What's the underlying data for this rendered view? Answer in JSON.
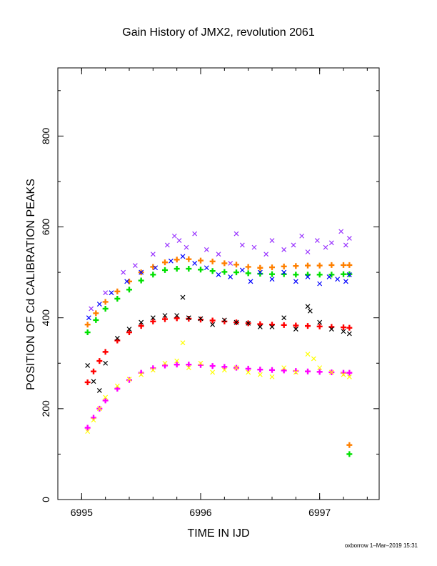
{
  "chart_data": {
    "type": "scatter",
    "title": "Gain History of JMX2, revolution 2061",
    "xlabel": "TIME IN IJD",
    "ylabel": "POSITION OF Cd CALIBRATION PEAKS",
    "footer": "oxborrow  1–Mar–2019 15:31",
    "xlim": [
      6994.8,
      6997.5
    ],
    "ylim": [
      0,
      950
    ],
    "xticks": [
      6995,
      6996,
      6997
    ],
    "yticks": [
      0,
      200,
      400,
      600,
      800
    ],
    "grid": false,
    "legend": "none",
    "series": [
      {
        "color": "#ff8000",
        "marker": "+",
        "x": [
          6995.05,
          6995.12,
          6995.2,
          6995.3,
          6995.4,
          6995.5,
          6995.6,
          6995.7,
          6995.8,
          6995.9,
          6996.0,
          6996.1,
          6996.2,
          6996.3,
          6996.4,
          6996.5,
          6996.6,
          6996.7,
          6996.8,
          6996.9,
          6997.0,
          6997.1,
          6997.2,
          6997.25
        ],
        "y": [
          385,
          410,
          435,
          458,
          480,
          500,
          512,
          522,
          528,
          529,
          526,
          524,
          520,
          517,
          512,
          510,
          511,
          513,
          514,
          515,
          515,
          516,
          516,
          516
        ]
      },
      {
        "color": "#00e000",
        "marker": "+",
        "x": [
          6995.05,
          6995.12,
          6995.2,
          6995.3,
          6995.4,
          6995.5,
          6995.6,
          6995.7,
          6995.8,
          6995.9,
          6996.0,
          6996.1,
          6996.2,
          6996.3,
          6996.4,
          6996.5,
          6996.6,
          6996.7,
          6996.8,
          6996.9,
          6997.0,
          6997.1,
          6997.2,
          6997.25
        ],
        "y": [
          368,
          395,
          420,
          442,
          462,
          482,
          495,
          505,
          508,
          508,
          506,
          503,
          501,
          500,
          498,
          497,
          496,
          496,
          495,
          495,
          495,
          495,
          496,
          496
        ]
      },
      {
        "color": "#ff0000",
        "marker": "+",
        "x": [
          6995.05,
          6995.1,
          6995.15,
          6995.2,
          6995.3,
          6995.4,
          6995.5,
          6995.6,
          6995.7,
          6995.8,
          6995.9,
          6996.0,
          6996.1,
          6996.2,
          6996.3,
          6996.4,
          6996.5,
          6996.6,
          6996.7,
          6996.8,
          6996.9,
          6997.0,
          6997.1,
          6997.2,
          6997.25
        ],
        "y": [
          258,
          282,
          305,
          325,
          350,
          368,
          382,
          392,
          397,
          399,
          398,
          396,
          394,
          392,
          390,
          388,
          386,
          385,
          384,
          383,
          382,
          381,
          380,
          379,
          378
        ]
      },
      {
        "color": "#ff00ff",
        "marker": "+",
        "x": [
          6995.05,
          6995.1,
          6995.15,
          6995.2,
          6995.3,
          6995.4,
          6995.5,
          6995.6,
          6995.7,
          6995.8,
          6995.9,
          6996.0,
          6996.1,
          6996.2,
          6996.3,
          6996.4,
          6996.5,
          6996.6,
          6996.7,
          6996.8,
          6996.9,
          6997.0,
          6997.1,
          6997.2,
          6997.25
        ],
        "y": [
          158,
          180,
          200,
          218,
          244,
          263,
          279,
          289,
          295,
          297,
          297,
          296,
          294,
          292,
          290,
          288,
          286,
          285,
          284,
          283,
          282,
          281,
          280,
          279,
          279
        ]
      },
      {
        "color": "#9933ff",
        "marker": "x",
        "x": [
          6995.08,
          6995.2,
          6995.35,
          6995.45,
          6995.6,
          6995.72,
          6995.78,
          6995.82,
          6995.88,
          6995.95,
          6996.05,
          6996.15,
          6996.25,
          6996.3,
          6996.35,
          6996.45,
          6996.55,
          6996.6,
          6996.7,
          6996.78,
          6996.85,
          6996.9,
          6996.98,
          6997.05,
          6997.1,
          6997.18,
          6997.22,
          6997.25
        ],
        "y": [
          420,
          455,
          500,
          515,
          540,
          560,
          580,
          570,
          555,
          585,
          550,
          540,
          520,
          585,
          560,
          555,
          540,
          570,
          550,
          560,
          580,
          545,
          570,
          555,
          565,
          590,
          560,
          575
        ]
      },
      {
        "color": "#0000ff",
        "marker": "x",
        "x": [
          6995.06,
          6995.15,
          6995.25,
          6995.38,
          6995.5,
          6995.62,
          6995.75,
          6995.85,
          6995.95,
          6996.05,
          6996.15,
          6996.25,
          6996.35,
          6996.42,
          6996.5,
          6996.6,
          6996.7,
          6996.8,
          6996.9,
          6997.0,
          6997.08,
          6997.15,
          6997.22,
          6997.25
        ],
        "y": [
          400,
          430,
          455,
          480,
          500,
          510,
          525,
          535,
          520,
          510,
          495,
          490,
          505,
          480,
          500,
          485,
          500,
          480,
          490,
          475,
          490,
          485,
          480,
          495
        ]
      },
      {
        "color": "#000000",
        "marker": "x",
        "x": [
          6995.05,
          6995.1,
          6995.15,
          6995.2,
          6995.3,
          6995.4,
          6995.5,
          6995.6,
          6995.7,
          6995.8,
          6995.85,
          6995.9,
          6996.0,
          6996.1,
          6996.2,
          6996.3,
          6996.4,
          6996.5,
          6996.6,
          6996.7,
          6996.8,
          6996.9,
          6996.92,
          6997.0,
          6997.1,
          6997.2,
          6997.25
        ],
        "y": [
          295,
          260,
          240,
          300,
          355,
          375,
          390,
          400,
          405,
          405,
          445,
          400,
          398,
          385,
          395,
          390,
          388,
          380,
          380,
          400,
          375,
          425,
          415,
          390,
          375,
          370,
          365
        ]
      },
      {
        "color": "#ffff00",
        "marker": "x",
        "x": [
          6995.05,
          6995.1,
          6995.15,
          6995.2,
          6995.3,
          6995.4,
          6995.5,
          6995.6,
          6995.7,
          6995.8,
          6995.85,
          6995.9,
          6996.0,
          6996.1,
          6996.2,
          6996.3,
          6996.4,
          6996.5,
          6996.6,
          6996.7,
          6996.8,
          6996.9,
          6996.95,
          6997.0,
          6997.1,
          6997.2,
          6997.25
        ],
        "y": [
          150,
          175,
          200,
          225,
          250,
          265,
          275,
          285,
          300,
          305,
          345,
          290,
          300,
          280,
          285,
          290,
          280,
          275,
          270,
          290,
          280,
          320,
          310,
          290,
          280,
          275,
          270
        ]
      },
      {
        "color": "#ff8000",
        "marker": "+",
        "x": [
          6997.25
        ],
        "y": [
          120
        ]
      },
      {
        "color": "#00e000",
        "marker": "+",
        "x": [
          6997.25
        ],
        "y": [
          100
        ]
      }
    ]
  }
}
